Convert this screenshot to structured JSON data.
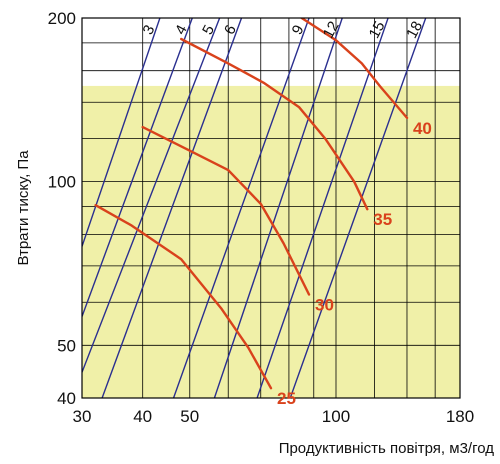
{
  "chart_data": {
    "type": "line",
    "xlabel": "Продуктивність повітря, м3/год",
    "ylabel": "Втрати тиску, Па",
    "x_scale": "log",
    "y_scale": "log",
    "xlim": [
      30,
      180
    ],
    "ylim": [
      40,
      200
    ],
    "x_ticks": [
      "30",
      "40",
      "50",
      "100",
      "180"
    ],
    "y_ticks": [
      "200",
      "100",
      "50",
      "40"
    ],
    "grid": true,
    "shaded_band_below_y": 150,
    "colors": {
      "background": "#ffffff",
      "shaded_band": "#f0f0a8",
      "grid": "#000000",
      "diagonal_lines": "#2a2f8f",
      "curves": "#d9421c",
      "curve_labels": "#d9421c"
    },
    "diagonal_series": [
      {
        "label": "3",
        "points": [
          [
            30,
            76
          ],
          [
            43.4,
            200
          ]
        ]
      },
      {
        "label": "4",
        "points": [
          [
            30,
            56.5
          ],
          [
            50.6,
            200
          ]
        ]
      },
      {
        "label": "5",
        "points": [
          [
            30,
            44.6
          ],
          [
            57.6,
            200
          ]
        ]
      },
      {
        "label": "6",
        "points": [
          [
            33,
            40
          ],
          [
            63.9,
            200
          ]
        ]
      },
      {
        "label": "9",
        "points": [
          [
            46.3,
            40
          ],
          [
            88,
            200
          ]
        ]
      },
      {
        "label": "12",
        "points": [
          [
            56.2,
            40
          ],
          [
            103,
            200
          ]
        ]
      },
      {
        "label": "15",
        "points": [
          [
            68.8,
            40
          ],
          [
            128,
            200
          ]
        ]
      },
      {
        "label": "18",
        "points": [
          [
            80.5,
            40
          ],
          [
            153,
            200
          ]
        ]
      }
    ],
    "series": [
      {
        "name": "25",
        "points": [
          [
            32,
            90.5
          ],
          [
            38,
            83
          ],
          [
            48,
            72
          ],
          [
            58,
            58.5
          ],
          [
            66,
            49.5
          ],
          [
            73.5,
            41.7
          ]
        ]
      },
      {
        "name": "30",
        "points": [
          [
            40,
            126
          ],
          [
            50,
            114
          ],
          [
            60,
            105
          ],
          [
            70,
            91
          ],
          [
            78,
            77
          ],
          [
            88,
            62
          ]
        ]
      },
      {
        "name": "35",
        "points": [
          [
            48,
            183
          ],
          [
            60,
            165
          ],
          [
            71,
            152
          ],
          [
            84,
            137
          ],
          [
            95,
            120
          ],
          [
            109,
            100
          ],
          [
            116,
            89
          ]
        ]
      },
      {
        "name": "40",
        "points": [
          [
            85,
            200
          ],
          [
            100,
            182
          ],
          [
            113,
            165
          ],
          [
            123,
            150
          ],
          [
            140,
            131
          ]
        ]
      }
    ]
  }
}
